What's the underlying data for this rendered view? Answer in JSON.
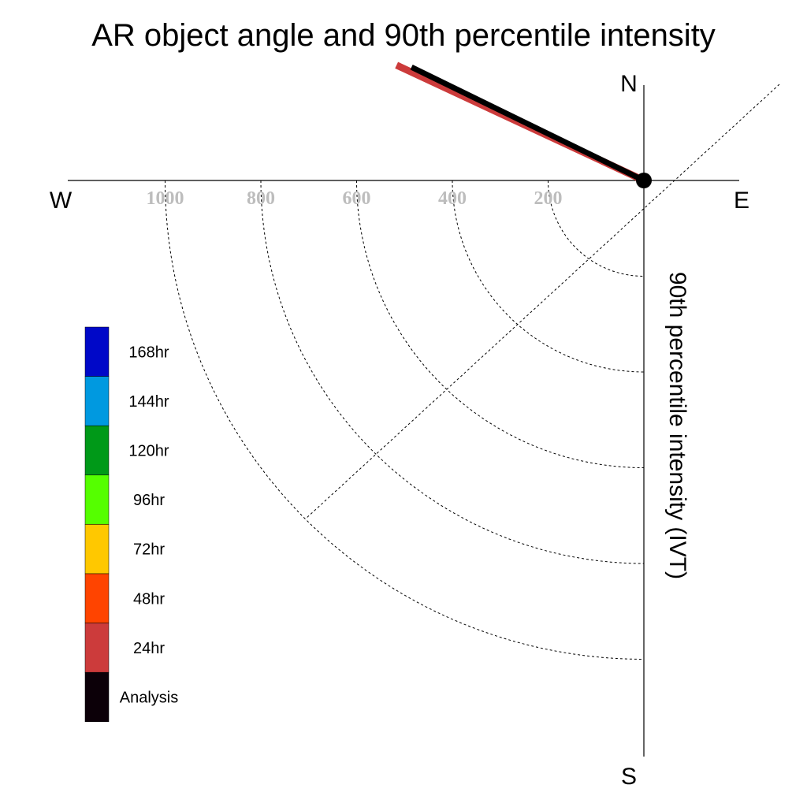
{
  "chart_data": {
    "type": "polar-vector",
    "title": "AR object angle and 90th percentile intensity",
    "ylabel": "90th percentile intensity (IVT)",
    "compass": {
      "north": "N",
      "south": "S",
      "east": "E",
      "west": "W"
    },
    "radial_ticks": [
      "200",
      "400",
      "600",
      "800",
      "1000"
    ],
    "radial_tick_values": [
      200,
      400,
      600,
      800,
      1000
    ],
    "rlim": [
      0,
      1200
    ],
    "grid": true,
    "legend_position": "left",
    "legend": [
      {
        "label": "168hr",
        "color": "#0008c8"
      },
      {
        "label": "144hr",
        "color": "#0099e0"
      },
      {
        "label": "120hr",
        "color": "#009918"
      },
      {
        "label": "96hr",
        "color": "#55ff00"
      },
      {
        "label": "72hr",
        "color": "#ffc800"
      },
      {
        "label": "48hr",
        "color": "#ff4400"
      },
      {
        "label": "24hr",
        "color": "#cc3b3b"
      },
      {
        "label": "Analysis",
        "color": "#0c0008"
      }
    ],
    "series": [
      {
        "name": "Analysis",
        "angle_deg": 296,
        "intensity": 540,
        "color": "#000000"
      },
      {
        "name": "24hr",
        "angle_deg": 295,
        "intensity": 570,
        "color": "#cc3b3b"
      }
    ]
  }
}
